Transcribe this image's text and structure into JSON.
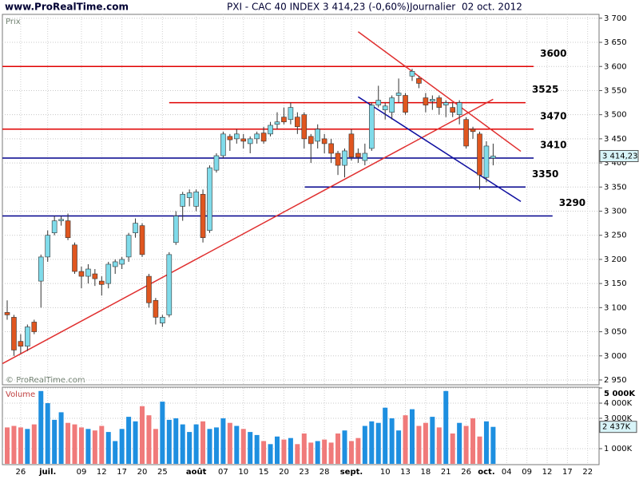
{
  "chart_data": {
    "type": "candlestick",
    "site": "www.ProRealTime.com",
    "title": "PXI - CAC 40 INDEX",
    "quote": "3 414,23 (-0,60%)",
    "period": "Journalier",
    "date": "02 oct. 2012",
    "panel_label": "Prix",
    "watermark": "© ProRealTime.com",
    "categories": [
      null,
      null,
      "26",
      null,
      null,
      null,
      "juil.",
      null,
      null,
      null,
      null,
      "09",
      null,
      null,
      "12",
      null,
      null,
      "17",
      null,
      null,
      "20",
      null,
      null,
      "25",
      null,
      null,
      null,
      null,
      "août",
      null,
      null,
      null,
      "07",
      null,
      null,
      "10",
      null,
      null,
      "15",
      null,
      null,
      "20",
      null,
      null,
      "23",
      null,
      null,
      "28",
      null,
      null,
      null,
      "sept.",
      null,
      null,
      null,
      null,
      "10",
      null,
      null,
      "13",
      null,
      null,
      "18",
      null,
      null,
      "21",
      null,
      null,
      "26",
      null,
      null,
      "oct.",
      null,
      null,
      "04",
      null,
      null,
      "09",
      null,
      null,
      "12",
      null,
      null,
      "17",
      null,
      null,
      "22"
    ],
    "open": [
      3090,
      3080,
      3030,
      3020,
      3070,
      3155,
      3205,
      3255,
      3280,
      3280,
      3230,
      3175,
      3165,
      3170,
      3155,
      3150,
      3185,
      3190,
      3205,
      3255,
      3270,
      3165,
      3115,
      3068,
      3085,
      3235,
      3310,
      3328,
      3310,
      3335,
      3260,
      3385,
      3415,
      3455,
      3450,
      3450,
      3440,
      3450,
      3462,
      3460,
      3480,
      3495,
      3490,
      3495,
      3500,
      3455,
      3445,
      3450,
      3440,
      3420,
      3395,
      3460,
      3420,
      3405,
      3430,
      3520,
      3510,
      3505,
      3540,
      3540,
      3580,
      3575,
      3535,
      3528,
      3535,
      3520,
      3515,
      3500,
      3490,
      3470,
      3460,
      3370,
      3410,
      null,
      null,
      null,
      null,
      null,
      null,
      null,
      null,
      null,
      null,
      null,
      null,
      null,
      null
    ],
    "high": [
      3115,
      3085,
      3045,
      3065,
      3075,
      3210,
      3260,
      3290,
      3290,
      3295,
      3235,
      3185,
      3190,
      3180,
      3165,
      3195,
      3200,
      3205,
      3255,
      3285,
      3275,
      3170,
      3120,
      3085,
      3215,
      3300,
      3340,
      3345,
      3345,
      3345,
      3395,
      3420,
      3465,
      3460,
      3470,
      3460,
      3455,
      3465,
      3475,
      3485,
      3505,
      3515,
      3525,
      3505,
      3505,
      3460,
      3480,
      3460,
      3450,
      3425,
      3430,
      3470,
      3430,
      3440,
      3525,
      3560,
      3525,
      3540,
      3575,
      3545,
      3595,
      3580,
      3545,
      3540,
      3540,
      3530,
      3525,
      3530,
      3495,
      3475,
      3465,
      3445,
      3440,
      null,
      null,
      null,
      null,
      null,
      null,
      null,
      null,
      null,
      null,
      null,
      null,
      null,
      null
    ],
    "low": [
      3075,
      3000,
      3005,
      3010,
      3045,
      3100,
      3195,
      3250,
      3270,
      3240,
      3170,
      3140,
      3150,
      3145,
      3125,
      3140,
      3170,
      3180,
      3195,
      3245,
      3205,
      3100,
      3065,
      3060,
      3080,
      3230,
      3280,
      3310,
      3300,
      3235,
      3255,
      3380,
      3410,
      3425,
      3440,
      3430,
      3420,
      3440,
      3440,
      3455,
      3470,
      3480,
      3480,
      3460,
      3430,
      3400,
      3430,
      3420,
      3400,
      3375,
      3370,
      3405,
      3400,
      3395,
      3425,
      3515,
      3490,
      3490,
      3525,
      3500,
      3570,
      3555,
      3505,
      3510,
      3500,
      3495,
      3495,
      3480,
      3430,
      3450,
      3345,
      3360,
      3395,
      null,
      null,
      null,
      null,
      null,
      null,
      null,
      null,
      null,
      null,
      null,
      null,
      null,
      null
    ],
    "close": [
      3085,
      3012,
      3020,
      3060,
      3050,
      3205,
      3250,
      3280,
      3283,
      3245,
      3175,
      3165,
      3180,
      3160,
      3148,
      3190,
      3195,
      3200,
      3250,
      3275,
      3210,
      3110,
      3080,
      3080,
      3210,
      3290,
      3335,
      3338,
      3340,
      3245,
      3390,
      3415,
      3460,
      3448,
      3460,
      3445,
      3450,
      3460,
      3445,
      3478,
      3485,
      3485,
      3515,
      3475,
      3450,
      3440,
      3470,
      3440,
      3420,
      3395,
      3425,
      3412,
      3412,
      3420,
      3520,
      3530,
      3518,
      3535,
      3545,
      3505,
      3590,
      3565,
      3520,
      3532,
      3515,
      3525,
      3505,
      3525,
      3435,
      3465,
      3375,
      3435,
      3414.23,
      null,
      null,
      null,
      null,
      null,
      null,
      null,
      null,
      null,
      null,
      null,
      null,
      null,
      null
    ],
    "last_close_label": "3 414,23",
    "up_color": "#7fdbea",
    "down_color": "#e0561f",
    "ylim": [
      2940,
      3708
    ],
    "yticks": [
      {
        "value": 2950,
        "label": "2 950"
      },
      {
        "value": 3000,
        "label": "3 000"
      },
      {
        "value": 3050,
        "label": "3 050"
      },
      {
        "value": 3100,
        "label": "3 100"
      },
      {
        "value": 3150,
        "label": "3 150"
      },
      {
        "value": 3200,
        "label": "3 200"
      },
      {
        "value": 3250,
        "label": "3 250"
      },
      {
        "value": 3300,
        "label": "3 300"
      },
      {
        "value": 3350,
        "label": "3 350"
      },
      {
        "value": 3400,
        "label": "3 400"
      },
      {
        "value": 3450,
        "label": "3 450"
      },
      {
        "value": 3500,
        "label": "3 500"
      },
      {
        "value": 3550,
        "label": "3 550"
      },
      {
        "value": 3600,
        "label": "3 600"
      },
      {
        "value": 3650,
        "label": "3 650"
      },
      {
        "value": 3700,
        "label": "3 700"
      }
    ],
    "grid": true,
    "levels": [
      {
        "value": 3600,
        "color": "#e00000",
        "from": -0.7,
        "to": 78
      },
      {
        "value": 3525,
        "color": "#e00000",
        "from": 24,
        "to": 76.8
      },
      {
        "value": 3470,
        "color": "#e00000",
        "from": -0.7,
        "to": 78
      },
      {
        "value": 3410,
        "color": "#00008c",
        "from": -0.7,
        "to": 78
      },
      {
        "value": 3350,
        "color": "#00008c",
        "from": 44.1,
        "to": 76.8
      },
      {
        "value": 3290,
        "color": "#00008c",
        "from": -0.7,
        "to": 80.8
      }
    ],
    "trendlines": [
      {
        "color": "#e03030",
        "x": [
          -0.7,
          72
        ],
        "y": [
          2984,
          3532
        ]
      },
      {
        "color": "#e03030",
        "x": [
          52,
          76.1
        ],
        "y": [
          3672,
          3424
        ]
      },
      {
        "color": "#1010a0",
        "x": [
          52,
          76.1
        ],
        "y": [
          3537,
          3320
        ]
      }
    ],
    "volume": {
      "label": "Volume",
      "values": [
        2400,
        2500,
        2400,
        2300,
        2600,
        4800,
        4000,
        2900,
        3400,
        2700,
        2600,
        2400,
        2300,
        2200,
        2500,
        2100,
        1500,
        2300,
        3100,
        2800,
        3800,
        3200,
        2300,
        4100,
        2900,
        3000,
        2600,
        2100,
        2600,
        2800,
        2300,
        2400,
        3000,
        2700,
        2500,
        2300,
        2100,
        1900,
        1500,
        1300,
        1800,
        1600,
        1700,
        1300,
        2000,
        1400,
        1500,
        1600,
        1400,
        2000,
        2200,
        1500,
        1700,
        2500,
        2800,
        2700,
        3700,
        3000,
        2200,
        3200,
        3600,
        2500,
        2700,
        3100,
        2400,
        4800,
        2000,
        2700,
        2500,
        3000,
        1800,
        2800,
        2437,
        null,
        null,
        null,
        null,
        null,
        null,
        null,
        null,
        null,
        null,
        null,
        null,
        null,
        null
      ],
      "last_label": "2 437K",
      "up_color": "#1e8fe0",
      "down_color": "#f07a7a",
      "ylim": [
        0,
        5000
      ],
      "yticks": [
        {
          "value": 1000,
          "label": "1 000K"
        },
        {
          "value": 3000,
          "label": "3 000K"
        },
        {
          "value": 4000,
          "label": "4 000K"
        },
        {
          "value": 5000,
          "label": "5 000K"
        }
      ]
    }
  }
}
